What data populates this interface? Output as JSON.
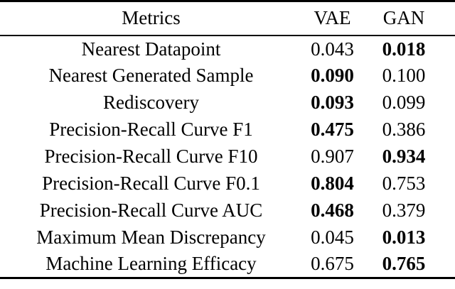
{
  "page": {
    "background": "#ffffff",
    "text_color": "#000000",
    "rule_color": "#000000"
  },
  "table": {
    "columns": [
      "Metrics",
      "VAE",
      "GAN"
    ],
    "rows": [
      {
        "metric": "Nearest Datapoint",
        "vae": "0.043",
        "gan": "0.018",
        "vae_bold": false,
        "gan_bold": true
      },
      {
        "metric": "Nearest Generated Sample",
        "vae": "0.090",
        "gan": "0.100",
        "vae_bold": true,
        "gan_bold": false
      },
      {
        "metric": "Rediscovery",
        "vae": "0.093",
        "gan": "0.099",
        "vae_bold": true,
        "gan_bold": false
      },
      {
        "metric": "Precision-Recall Curve F1",
        "vae": "0.475",
        "gan": "0.386",
        "vae_bold": true,
        "gan_bold": false
      },
      {
        "metric": "Precision-Recall Curve F10",
        "vae": "0.907",
        "gan": "0.934",
        "vae_bold": false,
        "gan_bold": true
      },
      {
        "metric": "Precision-Recall Curve F0.1",
        "vae": "0.804",
        "gan": "0.753",
        "vae_bold": true,
        "gan_bold": false
      },
      {
        "metric": "Precision-Recall Curve AUC",
        "vae": "0.468",
        "gan": "0.379",
        "vae_bold": true,
        "gan_bold": false
      },
      {
        "metric": "Maximum Mean Discrepancy",
        "vae": "0.045",
        "gan": "0.013",
        "vae_bold": false,
        "gan_bold": true
      },
      {
        "metric": "Machine Learning Efficacy",
        "vae": "0.675",
        "gan": "0.765",
        "vae_bold": false,
        "gan_bold": true
      }
    ]
  }
}
